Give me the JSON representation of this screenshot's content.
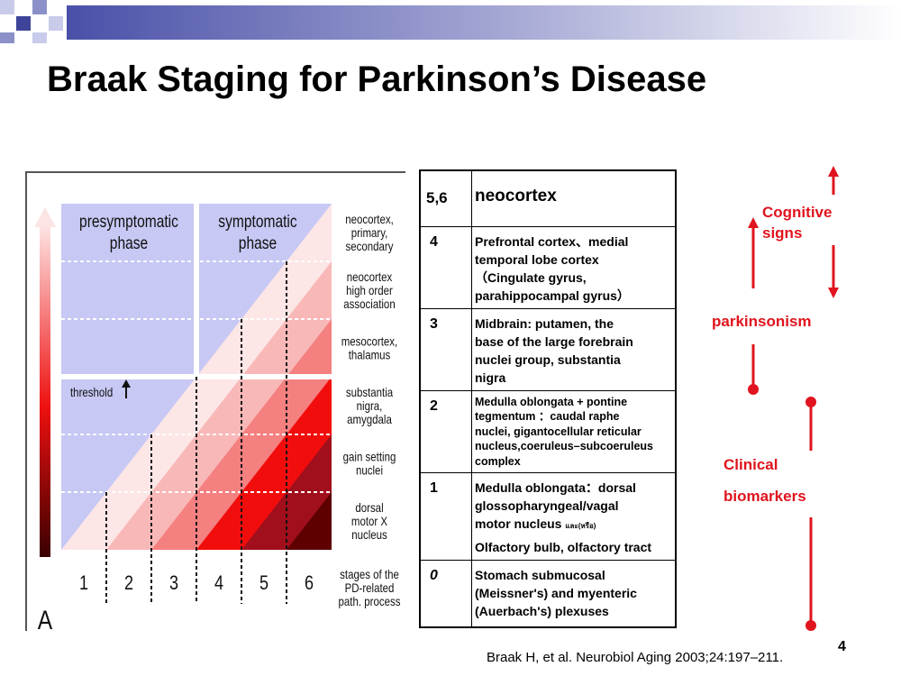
{
  "slide": {
    "title": "Braak Staging for Parkinson’s Disease",
    "citation": "Braak H, et al. Neurobiol Aging 2003;24:197–211.",
    "page_number": "4"
  },
  "diagram": {
    "panel_letter": "A",
    "phases": [
      "presymptomatic",
      "phase",
      "symptomatic",
      "phase"
    ],
    "threshold_label": "threshold",
    "regions": [
      [
        "neocortex,",
        "primary,",
        "secondary"
      ],
      [
        "neocortex",
        "high order",
        "association"
      ],
      [
        "mesocortex,",
        "thalamus"
      ],
      [
        "substantia",
        "nigra,",
        "amygdala"
      ],
      [
        "gain setting",
        "nuclei"
      ],
      [
        "dorsal",
        "motor X",
        "nucleus"
      ]
    ],
    "stage_numbers": [
      "1",
      "2",
      "3",
      "4",
      "5",
      "6"
    ],
    "x_caption": [
      "stages of the",
      "PD-related",
      "path. process"
    ],
    "colors": {
      "phase_blue": "#c7c8f4",
      "divider": "#ffffff",
      "shades": [
        "#fde6e6",
        "#f9b8b8",
        "#f48080",
        "#f20d0d",
        "#a10f1c",
        "#5e0000"
      ]
    }
  },
  "table": {
    "rows": [
      {
        "stage": "5,6",
        "lines": [
          "neocortex"
        ]
      },
      {
        "stage": "4",
        "lines": [
          "Prefrontal cortex、medial",
          "temporal lobe cortex",
          "（Cingulate gyrus,",
          "parahippocampal gyrus）"
        ]
      },
      {
        "stage": "3",
        "lines": [
          "Midbrain: putamen, the",
          "base of the large forebrain",
          "nuclei group, substantia",
          "nigra"
        ]
      },
      {
        "stage": "2",
        "lines": [
          "Medulla oblongata + pontine",
          "tegmentum ：caudal raphe",
          "nuclei, gigantocellular reticular",
          "nucleus,coeruleus–subcoeruleus",
          "complex"
        ]
      },
      {
        "stage": "1",
        "lines": [
          "Medulla oblongata：dorsal",
          "glossopharyngeal/vagal",
          "motor nucleus"
        ],
        "tiny": "และ(หรือ)",
        "extra": "Olfactory bulb, olfactory tract"
      },
      {
        "stage": "0",
        "lines": [
          "Stomach  submucosal",
          "(Meissner's) and myenteric",
          "(Auerbach's) plexuses"
        ]
      }
    ]
  },
  "clinical": {
    "cognitive": [
      "Cognitive",
      "signs"
    ],
    "parkinsonism": "parkinsonism",
    "clinical": "Clinical",
    "biomarkers": "biomarkers",
    "color": "#e0141e"
  }
}
